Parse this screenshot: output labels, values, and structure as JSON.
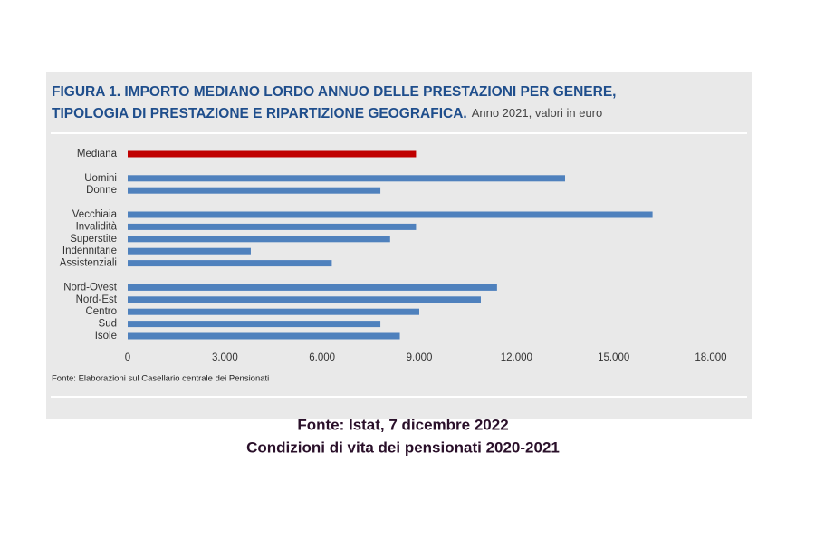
{
  "chart_data": {
    "type": "barh",
    "title": [
      "FIGURA 1. IMPORTO MEDIANO LORDO ANNUO DELLE PRESTAZIONI PER GENERE,",
      "TIPOLOGIA DI PRESTAZIONE E RIPARTIZIONE GEOGRAFICA."
    ],
    "subtitle": "Anno 2021, valori in euro",
    "categories": [
      "Mediana",
      null,
      "Uomini",
      "Donne",
      null,
      "Vecchiaia",
      "Invalidità",
      "Superstite",
      "Indennitarie",
      "Assistenziali",
      null,
      "Nord-Ovest",
      "Nord-Est",
      "Centro",
      "Sud",
      "Isole"
    ],
    "values": [
      8900,
      null,
      13500,
      7800,
      null,
      16200,
      8900,
      8100,
      3800,
      6300,
      null,
      11400,
      10900,
      9000,
      7800,
      8400
    ],
    "colors": [
      "#c00000",
      null,
      "#4f81bd",
      "#4f81bd",
      null,
      "#4f81bd",
      "#4f81bd",
      "#4f81bd",
      "#4f81bd",
      "#4f81bd",
      null,
      "#4f81bd",
      "#4f81bd",
      "#4f81bd",
      "#4f81bd",
      "#4f81bd"
    ],
    "xlim": [
      0,
      18000
    ],
    "xticks": [
      0,
      {
        "value": 3000,
        "label": "3.000"
      },
      {
        "value": 6000,
        "label": "6.000"
      },
      {
        "value": 9000,
        "label": "9.000"
      },
      {
        "value": 12000,
        "label": "12.000"
      },
      {
        "value": 15000,
        "label": "15.000"
      },
      {
        "value": 18000,
        "label": "18.000"
      }
    ],
    "grid": false,
    "note": "Fonte: Elaborazioni sul Casellario centrale dei Pensionati"
  },
  "caption": [
    "Fonte: Istat, 7 dicembre 2022",
    "Condizioni di vita dei pensionati 2020-2021"
  ]
}
